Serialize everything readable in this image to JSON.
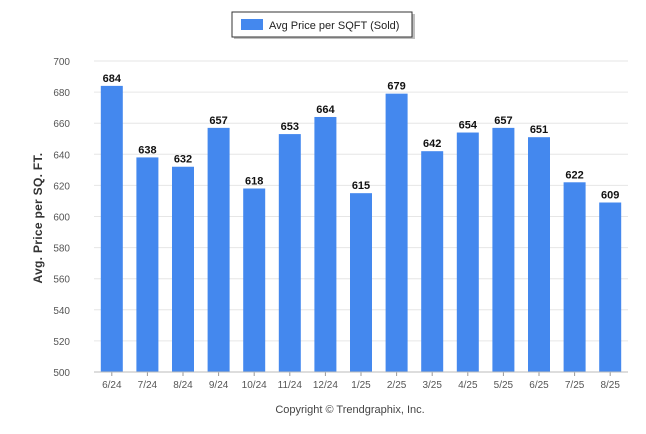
{
  "chart_data": {
    "type": "bar",
    "categories": [
      "6/24",
      "7/24",
      "8/24",
      "9/24",
      "10/24",
      "11/24",
      "12/24",
      "1/25",
      "2/25",
      "3/25",
      "4/25",
      "5/25",
      "6/25",
      "7/25",
      "8/25"
    ],
    "series": [
      {
        "name": "Avg Price per SQFT (Sold)",
        "values": [
          684,
          638,
          632,
          657,
          618,
          653,
          664,
          615,
          679,
          642,
          654,
          657,
          651,
          622,
          609
        ],
        "color": "#4488ee"
      }
    ],
    "ylabel": "Avg. Price per SQ. FT.",
    "ylim": [
      500,
      700
    ],
    "yticks": [
      500,
      520,
      540,
      560,
      580,
      600,
      620,
      640,
      660,
      680,
      700
    ],
    "grid": true,
    "legend": "top-center",
    "data_labels": true
  },
  "footer": "Copyright © Trendgraphix, Inc."
}
